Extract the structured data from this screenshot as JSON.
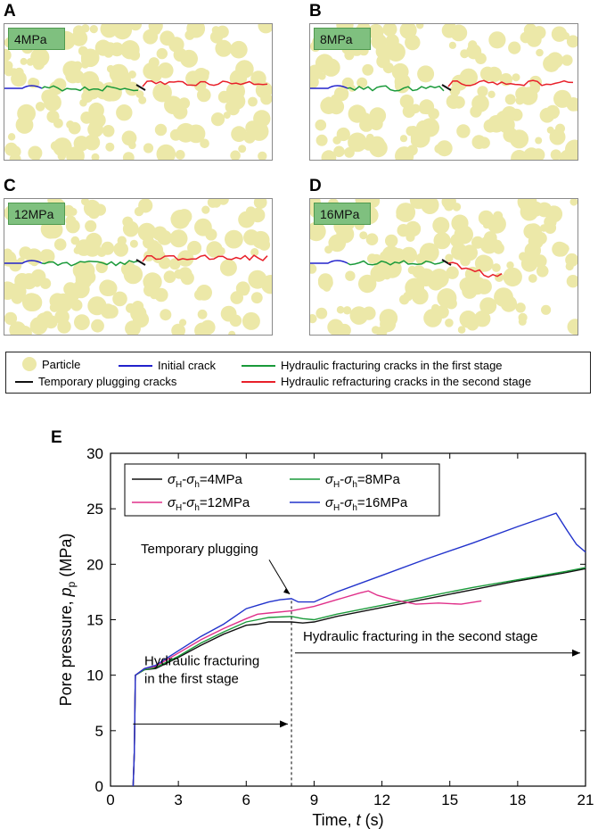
{
  "panels": [
    {
      "letter": "A",
      "label": "4MPa",
      "red_offset": 0
    },
    {
      "letter": "B",
      "label": "8MPa",
      "red_offset": 0
    },
    {
      "letter": "C",
      "label": "12MPa",
      "red_offset": 0
    },
    {
      "letter": "D",
      "label": "16MPa",
      "red_offset": 1
    }
  ],
  "legend": {
    "particle": "Particle",
    "initial_crack": "Initial crack",
    "first_stage": "Hydraulic fracturing cracks in the first stage",
    "temporary_plugging": "Temporary plugging cracks",
    "second_stage": "Hydraulic refracturing cracks in the second stage"
  },
  "colors": {
    "particle": "#ece8a8",
    "initial": "#2222cc",
    "first": "#1a9a3a",
    "plugging": "#111111",
    "second": "#e8202a"
  },
  "chart_data": {
    "type": "line",
    "panel_letter": "E",
    "xlabel": "Time, t (s)",
    "ylabel": "Pore pressure, pp (MPa)",
    "xlim": [
      0,
      21
    ],
    "ylim": [
      0,
      30
    ],
    "xticks": [
      0,
      3,
      6,
      9,
      12,
      15,
      18,
      21
    ],
    "yticks": [
      0,
      5,
      10,
      15,
      20,
      25,
      30
    ],
    "series": [
      {
        "name": "σH-σh=4MPa",
        "color": "#111111",
        "points": [
          [
            1,
            0
          ],
          [
            1.05,
            3
          ],
          [
            1.1,
            10
          ],
          [
            1.5,
            10.5
          ],
          [
            2,
            10.6
          ],
          [
            3,
            11.6
          ],
          [
            4,
            12.7
          ],
          [
            5,
            13.7
          ],
          [
            6,
            14.5
          ],
          [
            6.5,
            14.6
          ],
          [
            7,
            14.8
          ],
          [
            8,
            14.8
          ],
          [
            8.5,
            14.7
          ],
          [
            9,
            14.8
          ],
          [
            10,
            15.3
          ],
          [
            12,
            16.1
          ],
          [
            14,
            16.9
          ],
          [
            16,
            17.7
          ],
          [
            18,
            18.5
          ],
          [
            20,
            19.2
          ],
          [
            21,
            19.6
          ]
        ]
      },
      {
        "name": "σH-σh=8MPa",
        "color": "#1a9a3a",
        "points": [
          [
            1,
            0
          ],
          [
            1.05,
            3
          ],
          [
            1.1,
            10
          ],
          [
            1.5,
            10.5
          ],
          [
            2,
            10.7
          ],
          [
            3,
            11.7
          ],
          [
            4,
            12.9
          ],
          [
            5,
            13.9
          ],
          [
            6,
            14.8
          ],
          [
            6.5,
            15.0
          ],
          [
            7,
            15.2
          ],
          [
            8,
            15.3
          ],
          [
            8.5,
            15.1
          ],
          [
            9,
            15.0
          ],
          [
            10,
            15.5
          ],
          [
            12,
            16.3
          ],
          [
            14,
            17.1
          ],
          [
            16,
            17.9
          ],
          [
            18,
            18.6
          ],
          [
            20,
            19.3
          ],
          [
            21,
            19.7
          ]
        ]
      },
      {
        "name": "σH-σh=12MPa",
        "color": "#e0308a",
        "points": [
          [
            1,
            0
          ],
          [
            1.05,
            3
          ],
          [
            1.1,
            10
          ],
          [
            1.5,
            10.6
          ],
          [
            2,
            10.8
          ],
          [
            3,
            12.0
          ],
          [
            4,
            13.2
          ],
          [
            5,
            14.2
          ],
          [
            6,
            15.1
          ],
          [
            6.5,
            15.5
          ],
          [
            7,
            15.6
          ],
          [
            8,
            15.8
          ],
          [
            8.5,
            16.0
          ],
          [
            9,
            16.2
          ],
          [
            10,
            16.8
          ],
          [
            11,
            17.4
          ],
          [
            11.4,
            17.6
          ],
          [
            11.8,
            17.2
          ],
          [
            12.5,
            16.8
          ],
          [
            13.5,
            16.4
          ],
          [
            14.5,
            16.5
          ],
          [
            15.5,
            16.4
          ],
          [
            16.4,
            16.7
          ]
        ]
      },
      {
        "name": "σH-σh=16MPa",
        "color": "#2233cc",
        "points": [
          [
            1,
            0
          ],
          [
            1.05,
            3
          ],
          [
            1.1,
            10
          ],
          [
            1.5,
            10.6
          ],
          [
            2,
            10.9
          ],
          [
            3,
            12.2
          ],
          [
            4,
            13.5
          ],
          [
            5,
            14.6
          ],
          [
            6,
            16.0
          ],
          [
            6.5,
            16.3
          ],
          [
            7,
            16.6
          ],
          [
            7.5,
            16.8
          ],
          [
            8,
            16.9
          ],
          [
            8.3,
            16.6
          ],
          [
            9,
            16.6
          ],
          [
            10,
            17.5
          ],
          [
            12,
            19.0
          ],
          [
            14,
            20.5
          ],
          [
            16,
            21.9
          ],
          [
            18,
            23.4
          ],
          [
            19,
            24.1
          ],
          [
            19.7,
            24.6
          ],
          [
            20.2,
            23.0
          ],
          [
            20.6,
            21.8
          ],
          [
            21,
            21.1
          ]
        ]
      }
    ],
    "legend_labels": [
      {
        "sym": "σ",
        "sub1": "H",
        "sub2": "h",
        "value": "=4MPa"
      },
      {
        "sym": "σ",
        "sub1": "H",
        "sub2": "h",
        "value": "=8MPa"
      },
      {
        "sym": "σ",
        "sub1": "H",
        "sub2": "h",
        "value": "=12MPa"
      },
      {
        "sym": "σ",
        "sub1": "H",
        "sub2": "h",
        "value": "=16MPa"
      }
    ],
    "annotations": {
      "temporary_plugging": "Temporary plugging",
      "first_stage_line1": "Hydraulic fracturing",
      "first_stage_line2": "in the first stage",
      "second_stage": "Hydraulic fracturing in the second stage",
      "plugging_time": 8
    }
  }
}
